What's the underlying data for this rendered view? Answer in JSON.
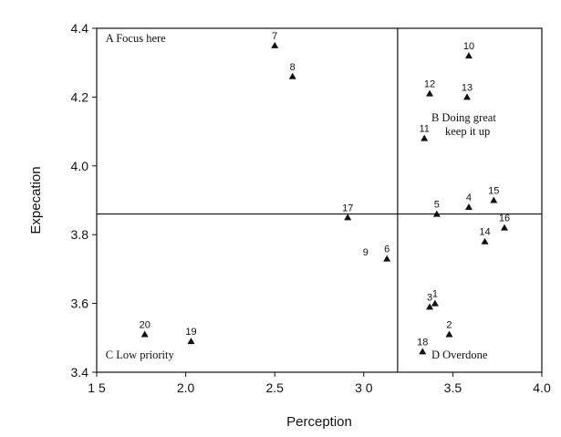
{
  "chart_data": {
    "type": "scatter",
    "xlabel": "Perception",
    "ylabel": "Expecation",
    "xlim": [
      1.5,
      4.0
    ],
    "ylim": [
      3.4,
      4.4
    ],
    "x_ticks": [
      {
        "value": 1.5,
        "label": "1 5"
      },
      {
        "value": 2.0,
        "label": "2.0"
      },
      {
        "value": 2.5,
        "label": "2.5"
      },
      {
        "value": 3.0,
        "label": "3 0"
      },
      {
        "value": 3.5,
        "label": "3.5"
      },
      {
        "value": 4.0,
        "label": "4.0"
      }
    ],
    "y_ticks": [
      {
        "value": 3.4,
        "label": "3.4"
      },
      {
        "value": 3.6,
        "label": "3.6"
      },
      {
        "value": 3.8,
        "label": "3.8"
      },
      {
        "value": 4.0,
        "label": "4.0"
      },
      {
        "value": 4.2,
        "label": "4.2"
      },
      {
        "value": 4.4,
        "label": "4.4"
      }
    ],
    "dividers": {
      "x": 3.19,
      "y": 3.86
    },
    "quadrants": [
      {
        "id": "A",
        "lines": [
          "A  Focus here"
        ],
        "x": 1.55,
        "y": 4.36,
        "align": "start"
      },
      {
        "id": "B",
        "lines": [
          "B  Doing great",
          "keep it up"
        ],
        "x": 3.38,
        "y": 4.13,
        "align": "start"
      },
      {
        "id": "C",
        "lines": [
          "C  Low priority"
        ],
        "x": 1.55,
        "y": 3.44,
        "align": "start"
      },
      {
        "id": "D",
        "lines": [
          "D  Overdone"
        ],
        "x": 3.38,
        "y": 3.44,
        "align": "start"
      }
    ],
    "points": [
      {
        "label": "1",
        "x": 3.4,
        "y": 3.6
      },
      {
        "label": "2",
        "x": 3.48,
        "y": 3.51
      },
      {
        "label": "3",
        "x": 3.37,
        "y": 3.59
      },
      {
        "label": "4",
        "x": 3.59,
        "y": 3.88
      },
      {
        "label": "5",
        "x": 3.41,
        "y": 3.86
      },
      {
        "label": "6",
        "x": 3.13,
        "y": 3.73
      },
      {
        "label": "7",
        "x": 2.5,
        "y": 4.35
      },
      {
        "label": "8",
        "x": 2.6,
        "y": 4.26
      },
      {
        "label": "9",
        "x": 3.01,
        "y": 3.75,
        "marker": false
      },
      {
        "label": "10",
        "x": 3.59,
        "y": 4.32
      },
      {
        "label": "11",
        "x": 3.34,
        "y": 4.08
      },
      {
        "label": "12",
        "x": 3.37,
        "y": 4.21
      },
      {
        "label": "13",
        "x": 3.58,
        "y": 4.2
      },
      {
        "label": "14",
        "x": 3.68,
        "y": 3.78
      },
      {
        "label": "15",
        "x": 3.73,
        "y": 3.9
      },
      {
        "label": "16",
        "x": 3.79,
        "y": 3.82
      },
      {
        "label": "17",
        "x": 2.91,
        "y": 3.85
      },
      {
        "label": "18",
        "x": 3.33,
        "y": 3.46
      },
      {
        "label": "19",
        "x": 2.03,
        "y": 3.49
      },
      {
        "label": "20",
        "x": 1.77,
        "y": 3.51
      }
    ]
  }
}
